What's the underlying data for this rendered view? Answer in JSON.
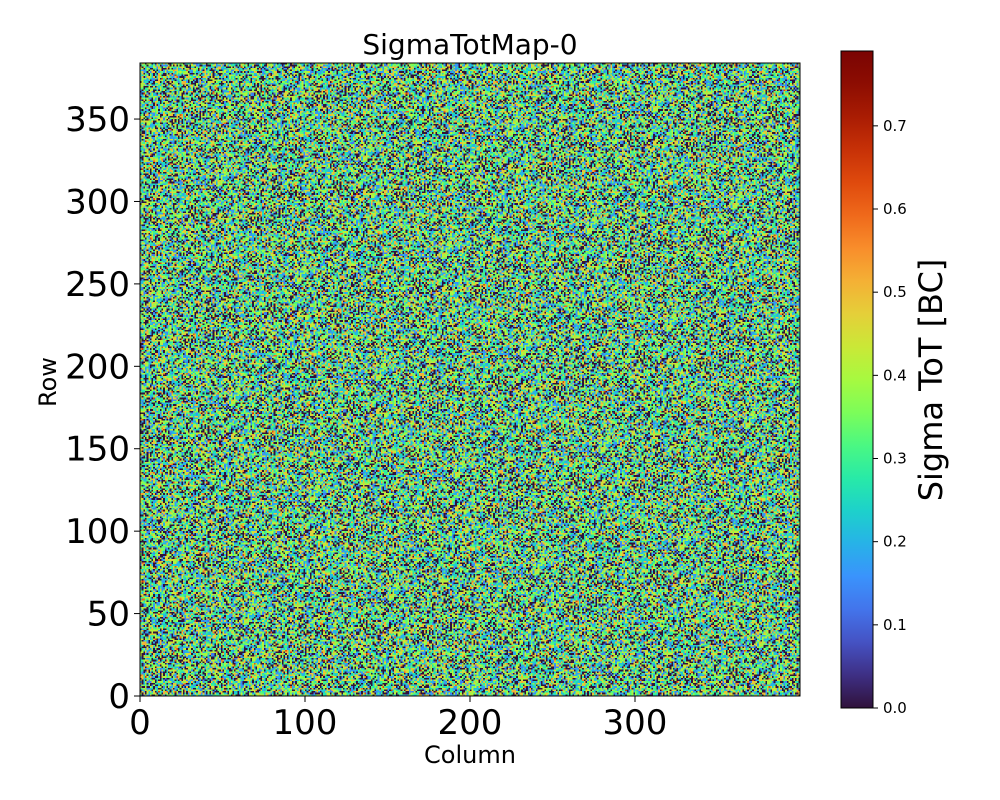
{
  "chart_data": {
    "type": "heatmap",
    "title": "SigmaTotMap-0",
    "xlabel": "Column",
    "ylabel": "Row",
    "colorbar_label": "Sigma ToT [BC]",
    "colormap": "turbo",
    "xlim": [
      0,
      400
    ],
    "ylim": [
      0,
      384
    ],
    "grid_columns": 400,
    "grid_rows": 384,
    "value_range": [
      0.0,
      0.79
    ],
    "value_distribution": "random noise, values mostly 0.0–0.5 with sparse higher values",
    "xticks": [
      {
        "value": 0,
        "label": "0"
      },
      {
        "value": 100,
        "label": "100"
      },
      {
        "value": 200,
        "label": "200"
      },
      {
        "value": 300,
        "label": "300"
      }
    ],
    "yticks": [
      {
        "value": 0,
        "label": "0"
      },
      {
        "value": 50,
        "label": "50"
      },
      {
        "value": 100,
        "label": "100"
      },
      {
        "value": 150,
        "label": "150"
      },
      {
        "value": 200,
        "label": "200"
      },
      {
        "value": 250,
        "label": "250"
      },
      {
        "value": 300,
        "label": "300"
      },
      {
        "value": 350,
        "label": "350"
      }
    ],
    "colorbar_ticks": [
      {
        "value": 0.0,
        "label": "0.0"
      },
      {
        "value": 0.1,
        "label": "0.1"
      },
      {
        "value": 0.2,
        "label": "0.2"
      },
      {
        "value": 0.3,
        "label": "0.3"
      },
      {
        "value": 0.4,
        "label": "0.4"
      },
      {
        "value": 0.5,
        "label": "0.5"
      },
      {
        "value": 0.6,
        "label": "0.6"
      },
      {
        "value": 0.7,
        "label": "0.7"
      }
    ]
  }
}
